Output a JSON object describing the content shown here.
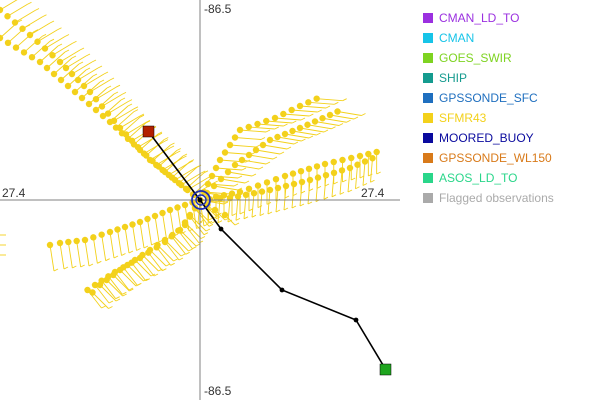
{
  "map": {
    "lat_label_top": "-86.5",
    "lat_label_bottom": "-86.5",
    "lon_label_left": "27.4",
    "lon_label_right": "27.4",
    "track_color": "#000000",
    "observation_color": "#f3d11b",
    "barb_color": "#f3d11b",
    "start_marker_color": "#b22000",
    "end_marker_color": "#1fa51f",
    "center_marker_color": "#1f2fb0"
  },
  "legend": {
    "items": [
      {
        "label": "CMAN_LD_TO",
        "color": "#9b30e0"
      },
      {
        "label": "CMAN",
        "color": "#17c4e8"
      },
      {
        "label": "GOES_SWIR",
        "color": "#7ed321"
      },
      {
        "label": "SHIP",
        "color": "#159b8f"
      },
      {
        "label": "GPSSONDE_SFC",
        "color": "#1f6fbf"
      },
      {
        "label": "SFMR43",
        "color": "#f3d11b"
      },
      {
        "label": "MOORED_BUOY",
        "color": "#0a0a9e"
      },
      {
        "label": "GPSSONDE_WL150",
        "color": "#d87a1a"
      },
      {
        "label": "ASOS_LD_TO",
        "color": "#2ad68a"
      },
      {
        "label": "Flagged observations",
        "color": "#aaaaaa"
      }
    ]
  }
}
